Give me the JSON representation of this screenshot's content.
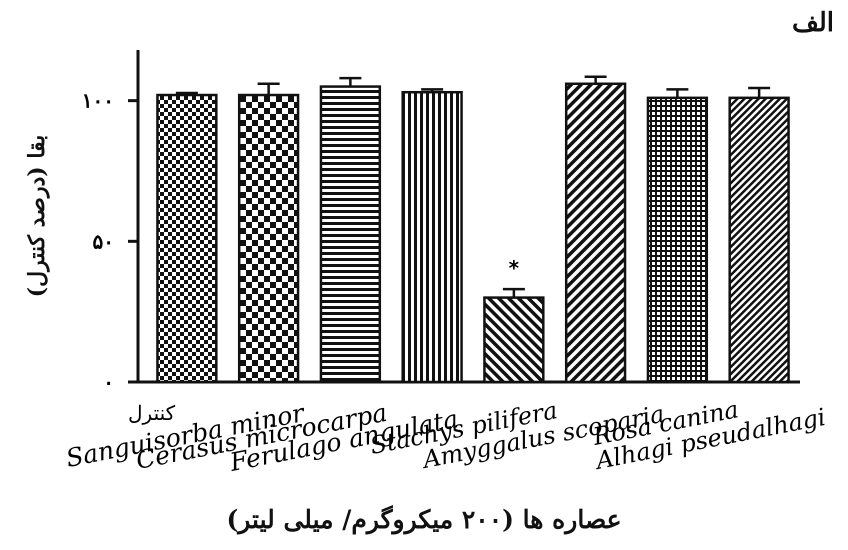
{
  "chart_data": {
    "type": "bar",
    "panel_label": "الف",
    "xlabel": "عصاره ها (۲۰۰ میکروگرم/ میلی لیتر)",
    "ylabel": "بقا (درصد کنترل)",
    "ylim": [
      0,
      118
    ],
    "yticks": [
      {
        "value": 0,
        "label": "۰"
      },
      {
        "value": 50,
        "label": "۵۰"
      },
      {
        "value": 100,
        "label": "۱۰۰"
      }
    ],
    "categories": [
      "کنترل",
      "Sanguisorba minor",
      "Cerasus microcarpa",
      "Ferulago angulata",
      "Stachys pilifera",
      "Amyggalus scoparia",
      "Rosa canina",
      "Alhagi pseudalhagi"
    ],
    "values": [
      102,
      102,
      105,
      103,
      30,
      106,
      101,
      101
    ],
    "errors": [
      0.7,
      4,
      3,
      1,
      3,
      2.5,
      3,
      3.5
    ],
    "annotations": [
      {
        "category": "Stachys pilifera",
        "text": "*"
      }
    ],
    "bar_color": "#111111",
    "background": "#ffffff",
    "legend": "none",
    "grid": false
  }
}
